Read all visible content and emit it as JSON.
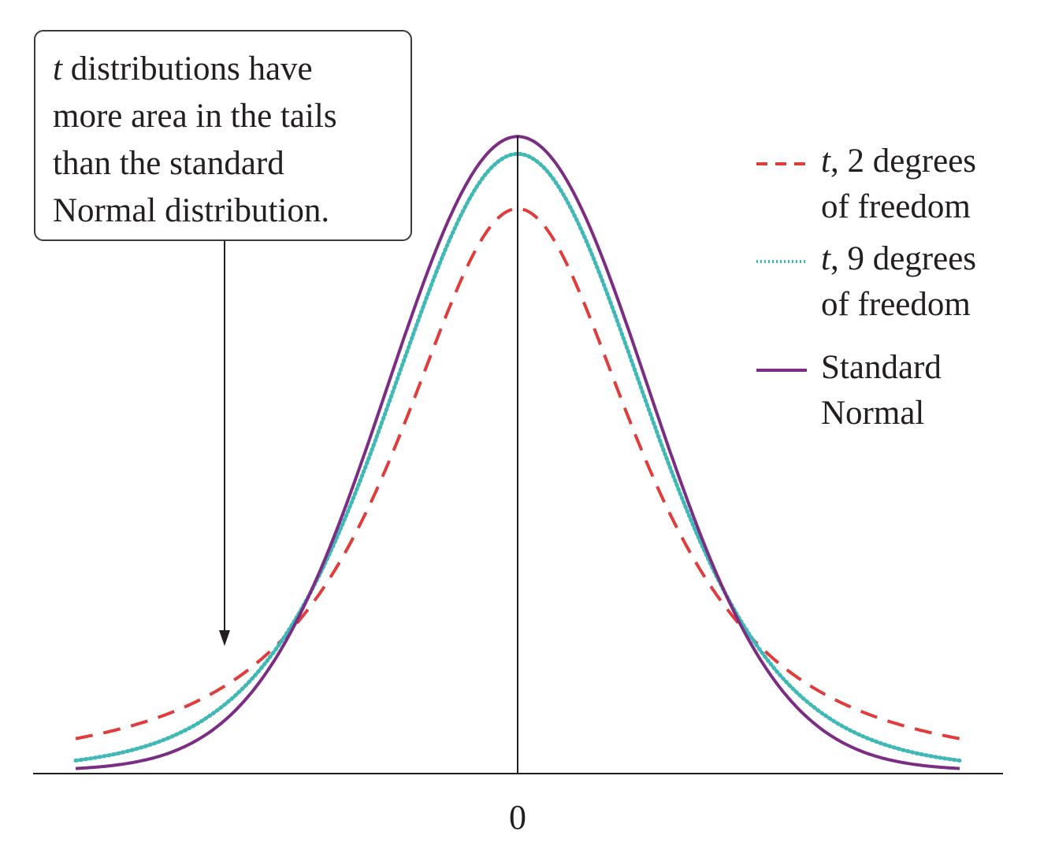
{
  "annotation": {
    "italic_part": "t",
    "text_line1": " distributions have",
    "text_line2": "more area in the tails",
    "text_line3": "than the standard",
    "text_line4": "Normal distribution."
  },
  "chart_data": {
    "type": "line",
    "title": "",
    "xlabel": "",
    "ylabel": "",
    "xlim": [
      -3.4,
      3.4
    ],
    "x_ticks": [
      "0"
    ],
    "legend_position": "right",
    "series": [
      {
        "name_italic": "t",
        "name": ", 2 degrees\nof freedom",
        "df": 2,
        "style": "dashed",
        "color": "#e03c3c"
      },
      {
        "name_italic": "t",
        "name": ", 9 degrees\nof freedom",
        "df": 9,
        "style": "dotted",
        "color": "#3fb8b6"
      },
      {
        "name_italic": "",
        "name": "Standard\nNormal",
        "df": null,
        "style": "solid",
        "color": "#7b2d83"
      }
    ]
  }
}
